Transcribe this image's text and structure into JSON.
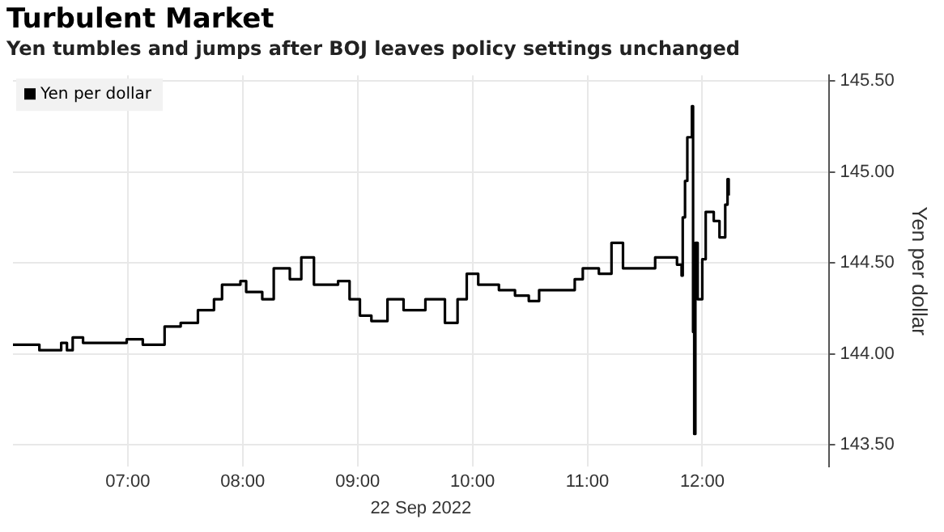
{
  "chart_data": {
    "type": "step",
    "title": "Turbulent Market",
    "subtitle": "Yen tumbles and jumps after BOJ leaves policy settings unchanged",
    "xlabel": "22 Sep 2022",
    "ylabel": "Yen per dollar",
    "xlim": [
      6.0,
      13.1
    ],
    "xticks": [
      {
        "value": 7,
        "label": "07:00"
      },
      {
        "value": 8,
        "label": "08:00"
      },
      {
        "value": 9,
        "label": "09:00"
      },
      {
        "value": 10,
        "label": "10:00"
      },
      {
        "value": 11,
        "label": "11:00"
      },
      {
        "value": 12,
        "label": "12:00"
      }
    ],
    "ylim": [
      143.38,
      145.53
    ],
    "yticks": [
      {
        "value": 143.5,
        "label": "143.50"
      },
      {
        "value": 144,
        "label": "144.00"
      },
      {
        "value": 144.5,
        "label": "144.50"
      },
      {
        "value": 145,
        "label": "145.00"
      },
      {
        "value": 145.5,
        "label": "145.50"
      }
    ],
    "grid": true,
    "legend": "top left",
    "series": [
      {
        "name": "Yen per dollar",
        "color": "#000000",
        "x": [
          6.0,
          6.23,
          6.42,
          6.47,
          6.52,
          6.61,
          6.99,
          7.13,
          7.32,
          7.46,
          7.61,
          7.75,
          7.82,
          7.98,
          8.03,
          8.17,
          8.27,
          8.41,
          8.51,
          8.62,
          8.83,
          8.93,
          9.02,
          9.12,
          9.26,
          9.4,
          9.59,
          9.76,
          9.87,
          9.95,
          10.05,
          10.23,
          10.37,
          10.49,
          10.58,
          10.75,
          10.89,
          10.96,
          11.1,
          11.21,
          11.31,
          11.5,
          11.59,
          11.78,
          11.82,
          11.83,
          11.85,
          11.87,
          11.91,
          11.92,
          11.93,
          11.94,
          11.96,
          12.0,
          12.03,
          12.1,
          12.15,
          12.2,
          12.22,
          12.23
        ],
        "values": [
          144.05,
          144.02,
          144.06,
          144.02,
          144.09,
          144.06,
          144.08,
          144.05,
          144.15,
          144.17,
          144.24,
          144.3,
          144.38,
          144.4,
          144.34,
          144.3,
          144.47,
          144.41,
          144.53,
          144.38,
          144.4,
          144.3,
          144.21,
          144.18,
          144.3,
          144.24,
          144.3,
          144.17,
          144.3,
          144.44,
          144.38,
          144.35,
          144.32,
          144.29,
          144.35,
          144.35,
          144.41,
          144.47,
          144.44,
          144.61,
          144.47,
          144.47,
          144.53,
          144.49,
          144.43,
          144.75,
          144.95,
          145.19,
          145.36,
          144.12,
          143.56,
          144.61,
          144.3,
          144.52,
          144.78,
          144.73,
          144.64,
          144.82,
          144.96,
          144.87
        ]
      }
    ]
  }
}
